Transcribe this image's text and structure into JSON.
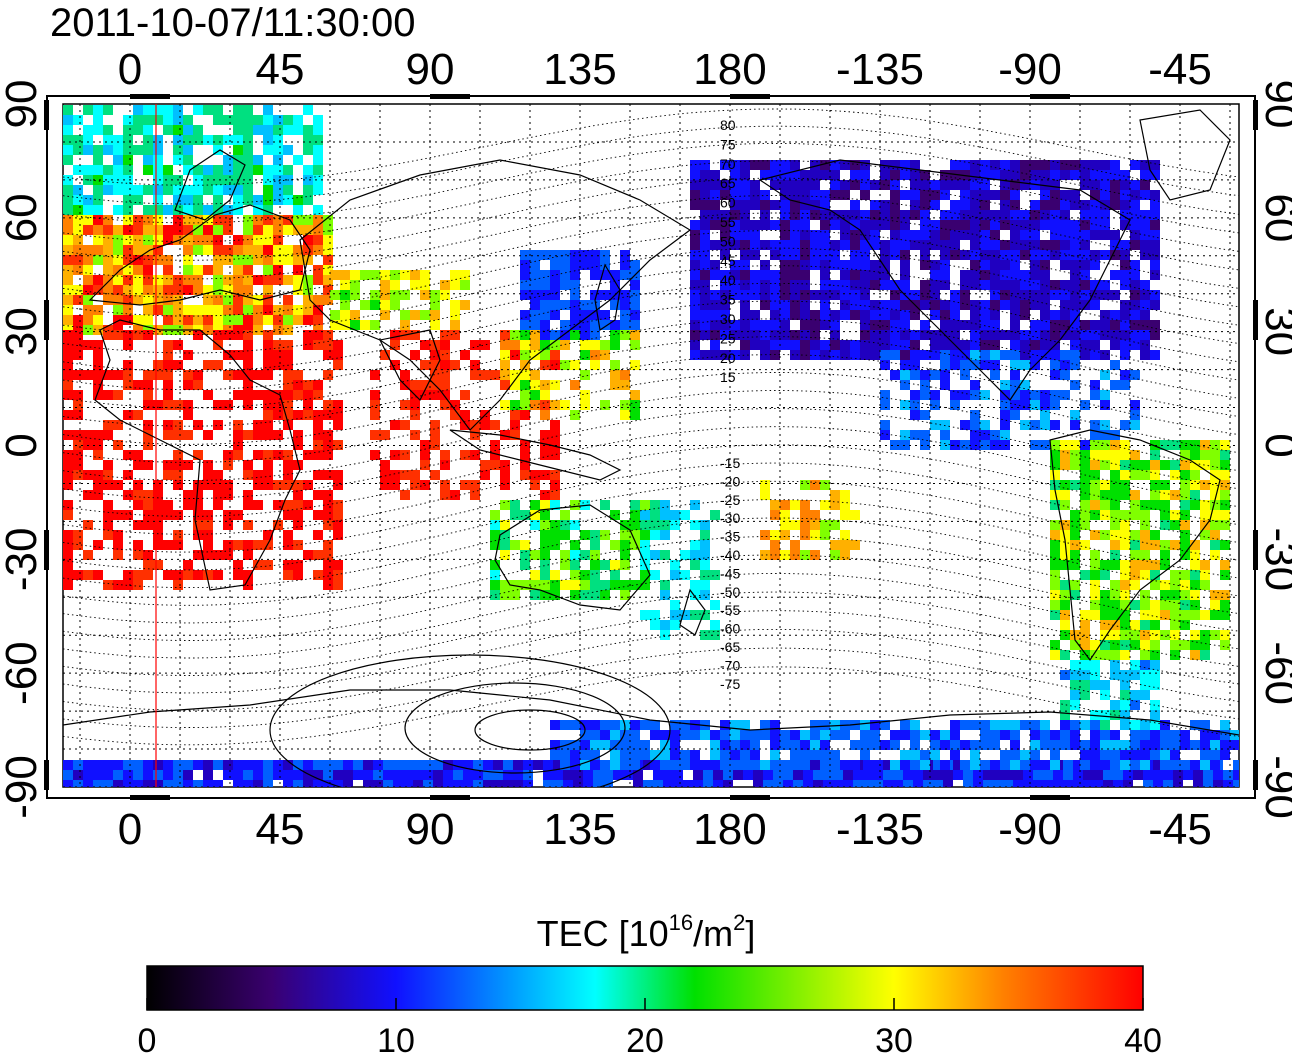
{
  "header": {
    "timestamp": "2011-10-07/11:30:00"
  },
  "map": {
    "longitude_ticks_top": [
      "0",
      "45",
      "90",
      "135",
      "180",
      "-135",
      "-90",
      "-45"
    ],
    "longitude_ticks_bottom": [
      "0",
      "45",
      "90",
      "135",
      "180",
      "-135",
      "-90",
      "-45"
    ],
    "latitude_ticks_left": [
      "90",
      "60",
      "30",
      "0",
      "-30",
      "-60",
      "-90"
    ],
    "latitude_ticks_right": [
      "90",
      "60",
      "30",
      "0",
      "-30",
      "-60",
      "-90"
    ],
    "magnetic_latitude_labels": [
      "80",
      "75",
      "70",
      "65",
      "60",
      "55",
      "50",
      "45",
      "40",
      "35",
      "30",
      "25",
      "20",
      "15",
      "-15",
      "-20",
      "-25",
      "-30",
      "-35",
      "-40",
      "-45",
      "-50",
      "-55",
      "-60",
      "-65",
      "-70",
      "-75"
    ],
    "colors": {
      "terminator_line": "#ff0000",
      "coastline": "#000000",
      "contour": "#000000"
    }
  },
  "colorbar": {
    "title_main": "TEC  [10",
    "title_sup": "16",
    "title_unit": "/m",
    "title_sup2": "2",
    "title_end": "]",
    "tick_labels": [
      "0",
      "10",
      "20",
      "30",
      "40"
    ],
    "range": [
      0,
      40
    ],
    "colormap": [
      "#000000",
      "#3a0070",
      "#1010ff",
      "#00ffff",
      "#00e000",
      "#ffff00",
      "#ff8000",
      "#ff0000"
    ]
  }
}
